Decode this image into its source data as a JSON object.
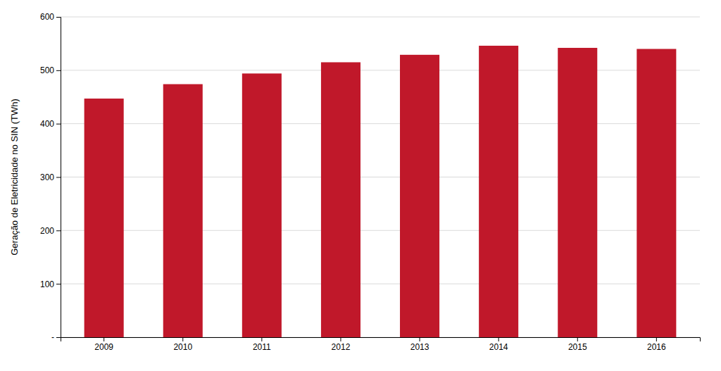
{
  "chart_data": {
    "type": "bar",
    "ylabel": "Geração de Eletricidade no SIN (TWh)",
    "categories": [
      "2009",
      "2010",
      "2011",
      "2012",
      "2013",
      "2014",
      "2015",
      "2016"
    ],
    "values": [
      447,
      474,
      494,
      515,
      529,
      546,
      542,
      540
    ],
    "color": "#C0182A",
    "ylim": [
      0,
      600
    ],
    "yticks": [
      {
        "value": 0,
        "label": "-"
      },
      100,
      200,
      300,
      400,
      500,
      600
    ],
    "grid": true
  }
}
